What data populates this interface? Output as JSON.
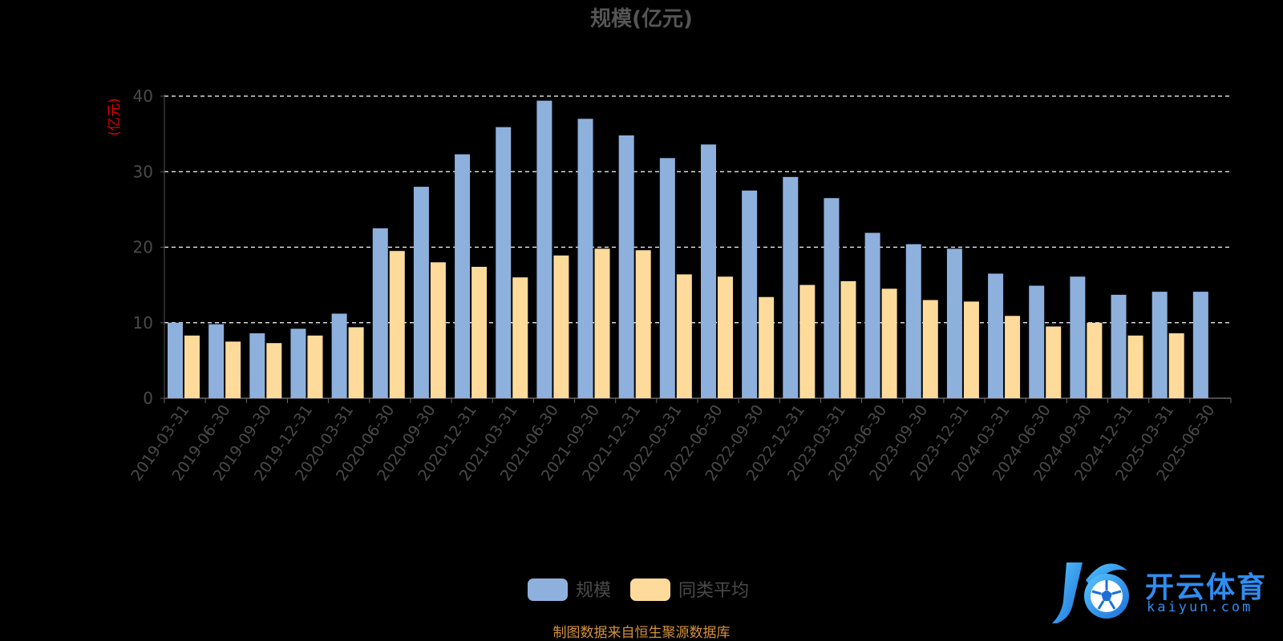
{
  "chart_data": {
    "type": "bar",
    "title": "规模(亿元)",
    "ylabel": "(亿元)",
    "ylim": [
      0,
      40
    ],
    "yticks": [
      0,
      10,
      20,
      30,
      40
    ],
    "grid": "dashed horizontal",
    "legend_position": "bottom-center",
    "categories": [
      "2019-03-31",
      "2019-06-30",
      "2019-09-30",
      "2019-12-31",
      "2020-03-31",
      "2020-06-30",
      "2020-09-30",
      "2020-12-31",
      "2021-03-31",
      "2021-06-30",
      "2021-09-30",
      "2021-12-31",
      "2022-03-31",
      "2022-06-30",
      "2022-09-30",
      "2022-12-31",
      "2023-03-31",
      "2023-06-30",
      "2023-09-30",
      "2023-12-31",
      "2024-03-31",
      "2024-06-30",
      "2024-09-30",
      "2024-12-31",
      "2025-03-31",
      "2025-06-30"
    ],
    "series": [
      {
        "name": "规模",
        "color": "#8eb0dd",
        "values": [
          10.0,
          9.8,
          8.6,
          9.2,
          11.2,
          22.5,
          28.0,
          32.3,
          35.9,
          39.4,
          37.0,
          34.8,
          31.8,
          33.6,
          27.5,
          29.3,
          26.5,
          21.9,
          20.4,
          19.8,
          16.5,
          14.9,
          16.1,
          13.7,
          14.1,
          14.1
        ]
      },
      {
        "name": "同类平均",
        "color": "#fedb9b",
        "values": [
          8.3,
          7.5,
          7.3,
          8.3,
          9.4,
          19.5,
          18.0,
          17.4,
          16.0,
          18.9,
          19.8,
          19.6,
          16.4,
          16.1,
          13.4,
          15.0,
          15.5,
          14.5,
          13.0,
          12.8,
          10.9,
          9.5,
          10.0,
          8.3,
          8.6,
          null
        ]
      }
    ]
  },
  "footer": {
    "source": "制图数据来自恒生聚源数据库"
  },
  "logo": {
    "name": "开云体育",
    "url_text": "kaiyun.com"
  },
  "colors": {
    "axis_text": "#4a4a4a",
    "ylabel": "#e00000",
    "source": "#d4923a",
    "grid": "#ffffff"
  }
}
